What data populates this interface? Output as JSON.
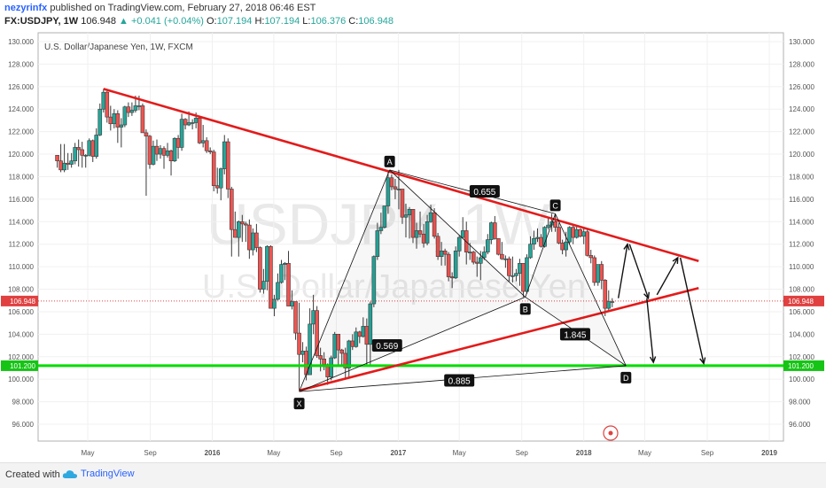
{
  "header": {
    "user": "nezyrinfx",
    "published": "published on TradingView.com, February 27, 2018 06:46 EST",
    "symbol": "FX:USDJPY, 1W",
    "last": "106.948",
    "change": "▲ +0.041 (+0.04%)",
    "o_label": "O:",
    "o": "107.194",
    "h_label": "H:",
    "h": "107.194",
    "l_label": "L:",
    "l": "106.376",
    "c_label": "C:",
    "c": "106.948"
  },
  "footer": {
    "created": "Created with",
    "brand": "TradingView"
  },
  "chart_data": {
    "type": "candlestick",
    "title": "U.S. Dollar/Japanese Yen, 1W, FXCM",
    "watermark_symbol": "USDJPY, 1W",
    "watermark_name": "U.S. Dollar/Japanese Yen",
    "x_ticks": [
      "May",
      "Sep",
      "2016",
      "May",
      "Sep",
      "2017",
      "May",
      "Sep",
      "2018",
      "May",
      "Sep",
      "2019"
    ],
    "x_tick_dates": [
      "2015-05-01",
      "2015-09-01",
      "2016-01-01",
      "2016-05-01",
      "2016-09-01",
      "2017-01-01",
      "2017-05-01",
      "2017-09-01",
      "2018-01-01",
      "2018-05-01",
      "2018-09-01",
      "2019-01-01"
    ],
    "y_ticks": [
      "130.000",
      "128.000",
      "126.000",
      "124.000",
      "122.000",
      "120.000",
      "118.000",
      "116.000",
      "114.000",
      "112.000",
      "110.000",
      "108.000",
      "106.000",
      "104.000",
      "102.000",
      "100.000",
      "98.000",
      "96.000"
    ],
    "y_range": [
      94.5,
      130.5
    ],
    "last_price": "106.948",
    "support_level": "101.200",
    "colors": {
      "up": "#26a69a",
      "down": "#ef5350",
      "trendline": "#e31b1b",
      "support": "#00dd00",
      "pattern": "#111111",
      "last_price": "#e04040"
    },
    "trendlines": [
      {
        "name": "upper-resistance",
        "from": [
          "2015-06-01",
          125.8
        ],
        "to": [
          "2018-08-15",
          110.5
        ]
      },
      {
        "name": "lower-support",
        "from": [
          "2016-06-20",
          99.0
        ],
        "to": [
          "2018-08-15",
          108.1
        ]
      }
    ],
    "horizontal_lines": [
      {
        "name": "support-101",
        "y": 101.2
      }
    ],
    "harmonic_points": [
      {
        "label": "X",
        "date": "2016-06-20",
        "y": 98.9
      },
      {
        "label": "A",
        "date": "2016-12-15",
        "y": 118.6
      },
      {
        "label": "B",
        "date": "2017-09-08",
        "y": 107.3
      },
      {
        "label": "C",
        "date": "2017-11-06",
        "y": 114.7
      },
      {
        "label": "D",
        "date": "2018-03-25",
        "y": 101.2
      }
    ],
    "ratios": [
      {
        "text": "0.655",
        "date": "2017-06-20",
        "y": 116.7
      },
      {
        "text": "0.569",
        "date": "2016-12-10",
        "y": 103.0
      },
      {
        "text": "1.845",
        "date": "2017-12-15",
        "y": 104.0
      },
      {
        "text": "0.885",
        "date": "2017-05-01",
        "y": 99.9
      }
    ],
    "arrows": [
      {
        "from": [
          "2018-03-10",
          107.2
        ],
        "to": [
          "2018-03-28",
          112.0
        ]
      },
      {
        "from": [
          "2018-04-01",
          112.0
        ],
        "to": [
          "2018-05-08",
          107.2
        ]
      },
      {
        "from": [
          "2018-05-05",
          107.2
        ],
        "to": [
          "2018-05-18",
          101.5
        ]
      },
      {
        "from": [
          "2018-05-25",
          107.5
        ],
        "to": [
          "2018-07-05",
          110.8
        ]
      },
      {
        "from": [
          "2018-07-10",
          110.8
        ],
        "to": [
          "2018-08-25",
          101.4
        ]
      }
    ],
    "candles": [
      [
        "2015-03-02",
        119.9,
        119.8,
        118.8,
        119.4
      ],
      [
        "2015-03-09",
        119.4,
        120.9,
        118.4,
        118.6
      ],
      [
        "2015-03-16",
        118.6,
        120.9,
        118.4,
        119.2
      ],
      [
        "2015-03-23",
        119.2,
        120.1,
        118.6,
        119.1
      ],
      [
        "2015-03-30",
        119.1,
        120.1,
        118.8,
        119.4
      ],
      [
        "2015-04-06",
        119.4,
        121.0,
        119.1,
        120.6
      ],
      [
        "2015-04-13",
        120.6,
        121.3,
        118.9,
        120.4
      ],
      [
        "2015-04-20",
        120.4,
        121.1,
        118.8,
        119.9
      ],
      [
        "2015-04-27",
        119.9,
        120.0,
        118.8,
        119.9
      ],
      [
        "2015-05-04",
        119.9,
        121.4,
        119.8,
        121.2
      ],
      [
        "2015-05-11",
        121.2,
        121.3,
        119.3,
        119.8
      ],
      [
        "2015-05-18",
        119.8,
        122.3,
        119.6,
        121.7
      ],
      [
        "2015-05-25",
        121.7,
        124.5,
        121.6,
        124.0
      ],
      [
        "2015-06-01",
        124.0,
        125.8,
        123.7,
        125.5
      ],
      [
        "2015-06-08",
        125.5,
        125.6,
        122.8,
        123.3
      ],
      [
        "2015-06-15",
        123.3,
        124.3,
        122.1,
        122.7
      ],
      [
        "2015-06-22",
        122.7,
        124.0,
        122.3,
        123.6
      ],
      [
        "2015-06-29",
        123.6,
        123.9,
        121.0,
        122.4
      ],
      [
        "2015-07-06",
        122.4,
        123.2,
        120.6,
        122.6
      ],
      [
        "2015-07-13",
        122.6,
        124.3,
        122.4,
        124.2
      ],
      [
        "2015-07-20",
        124.2,
        124.6,
        123.3,
        123.7
      ],
      [
        "2015-07-27",
        123.7,
        124.6,
        123.4,
        123.9
      ],
      [
        "2015-08-03",
        123.9,
        125.2,
        123.7,
        124.3
      ],
      [
        "2015-08-10",
        124.3,
        125.2,
        123.9,
        124.3
      ],
      [
        "2015-08-17",
        124.3,
        124.5,
        122.2,
        121.9
      ],
      [
        "2015-08-24",
        121.9,
        122.2,
        116.3,
        121.6
      ],
      [
        "2015-08-31",
        121.6,
        121.7,
        118.7,
        119.1
      ],
      [
        "2015-09-07",
        119.1,
        121.2,
        119.0,
        120.7
      ],
      [
        "2015-09-14",
        120.7,
        121.3,
        119.4,
        120.0
      ],
      [
        "2015-09-21",
        120.0,
        120.8,
        119.6,
        120.5
      ],
      [
        "2015-09-28",
        120.5,
        120.7,
        118.7,
        119.9
      ],
      [
        "2015-10-05",
        119.9,
        121.0,
        119.7,
        120.3
      ],
      [
        "2015-10-12",
        120.3,
        120.4,
        118.1,
        119.4
      ],
      [
        "2015-10-19",
        119.4,
        121.5,
        119.3,
        121.4
      ],
      [
        "2015-10-26",
        121.4,
        121.7,
        119.6,
        120.6
      ],
      [
        "2015-11-02",
        120.6,
        123.6,
        120.3,
        123.1
      ],
      [
        "2015-11-09",
        123.1,
        123.2,
        122.2,
        122.6
      ],
      [
        "2015-11-16",
        122.6,
        123.8,
        122.5,
        122.8
      ],
      [
        "2015-11-23",
        122.8,
        123.1,
        122.2,
        122.8
      ],
      [
        "2015-11-30",
        122.8,
        123.7,
        122.3,
        123.2
      ],
      [
        "2015-12-07",
        123.2,
        123.3,
        120.9,
        121.0
      ],
      [
        "2015-12-14",
        121.0,
        122.6,
        120.6,
        121.2
      ],
      [
        "2015-12-21",
        121.2,
        121.5,
        120.1,
        120.3
      ],
      [
        "2015-12-28",
        120.3,
        120.6,
        120.0,
        120.2
      ],
      [
        "2016-01-04",
        120.2,
        120.4,
        116.7,
        117.2
      ],
      [
        "2016-01-11",
        117.2,
        118.8,
        116.5,
        117.0
      ],
      [
        "2016-01-18",
        117.0,
        118.8,
        115.9,
        118.7
      ],
      [
        "2016-01-25",
        118.7,
        121.7,
        118.2,
        121.1
      ],
      [
        "2016-02-01",
        121.1,
        121.4,
        116.1,
        116.9
      ],
      [
        "2016-02-08",
        116.9,
        117.1,
        110.9,
        113.3
      ],
      [
        "2016-02-15",
        113.3,
        114.9,
        112.6,
        112.6
      ],
      [
        "2016-02-22",
        112.6,
        114.1,
        110.9,
        114.0
      ],
      [
        "2016-02-29",
        114.0,
        114.6,
        112.2,
        113.8
      ],
      [
        "2016-03-07",
        113.8,
        114.0,
        112.2,
        113.7
      ],
      [
        "2016-03-14",
        113.7,
        114.2,
        110.7,
        111.5
      ],
      [
        "2016-03-21",
        111.5,
        113.4,
        111.0,
        113.0
      ],
      [
        "2016-03-28",
        113.0,
        113.8,
        111.3,
        111.7
      ],
      [
        "2016-04-04",
        111.7,
        111.8,
        107.7,
        108.0
      ],
      [
        "2016-04-11",
        108.0,
        109.8,
        107.6,
        108.7
      ],
      [
        "2016-04-18",
        108.7,
        111.9,
        107.9,
        111.8
      ],
      [
        "2016-04-25",
        111.8,
        111.9,
        106.3,
        106.3
      ],
      [
        "2016-05-02",
        106.3,
        107.5,
        105.6,
        107.1
      ],
      [
        "2016-05-09",
        107.1,
        109.4,
        107.0,
        108.6
      ],
      [
        "2016-05-16",
        108.6,
        110.6,
        108.5,
        110.2
      ],
      [
        "2016-05-23",
        110.2,
        110.4,
        108.8,
        110.3
      ],
      [
        "2016-05-30",
        110.3,
        111.4,
        106.5,
        106.5
      ],
      [
        "2016-06-06",
        106.5,
        107.9,
        106.2,
        106.9
      ],
      [
        "2016-06-13",
        106.9,
        106.9,
        103.5,
        104.1
      ],
      [
        "2016-06-20",
        104.1,
        106.8,
        99.0,
        102.2
      ],
      [
        "2016-06-27",
        102.2,
        103.3,
        101.5,
        102.5
      ],
      [
        "2016-07-04",
        102.5,
        102.9,
        99.9,
        100.4
      ],
      [
        "2016-07-11",
        100.4,
        106.3,
        100.5,
        104.9
      ],
      [
        "2016-07-18",
        104.9,
        107.5,
        104.0,
        106.1
      ],
      [
        "2016-07-25",
        106.1,
        106.5,
        101.9,
        102.1
      ],
      [
        "2016-08-01",
        102.1,
        102.8,
        100.7,
        101.8
      ],
      [
        "2016-08-08",
        101.8,
        102.4,
        100.8,
        101.3
      ],
      [
        "2016-08-15",
        101.3,
        101.4,
        99.5,
        100.2
      ],
      [
        "2016-08-22",
        100.2,
        102.1,
        99.9,
        101.9
      ],
      [
        "2016-08-29",
        101.9,
        104.2,
        101.8,
        104.0
      ],
      [
        "2016-09-05",
        104.0,
        104.0,
        101.2,
        102.6
      ],
      [
        "2016-09-12",
        102.6,
        102.7,
        101.3,
        102.3
      ],
      [
        "2016-09-19",
        102.3,
        102.8,
        100.1,
        101.0
      ],
      [
        "2016-09-26",
        101.0,
        103.5,
        100.1,
        103.4
      ],
      [
        "2016-10-03",
        103.4,
        104.0,
        102.6,
        102.9
      ],
      [
        "2016-10-10",
        102.9,
        104.6,
        102.8,
        104.2
      ],
      [
        "2016-10-17",
        104.2,
        104.3,
        103.2,
        103.8
      ],
      [
        "2016-10-24",
        103.8,
        105.5,
        103.7,
        104.7
      ],
      [
        "2016-10-31",
        104.7,
        105.4,
        101.2,
        103.1
      ],
      [
        "2016-11-07",
        103.1,
        106.9,
        101.2,
        106.7
      ],
      [
        "2016-11-14",
        106.7,
        111.0,
        106.4,
        110.9
      ],
      [
        "2016-11-21",
        110.9,
        113.9,
        110.6,
        113.2
      ],
      [
        "2016-11-28",
        113.2,
        114.8,
        112.9,
        113.5
      ],
      [
        "2016-12-05",
        113.5,
        115.4,
        113.4,
        115.4
      ],
      [
        "2016-12-12",
        115.4,
        118.6,
        114.7,
        117.9
      ],
      [
        "2016-12-19",
        117.9,
        118.2,
        116.8,
        117.1
      ],
      [
        "2016-12-26",
        117.1,
        117.8,
        116.0,
        116.9
      ],
      [
        "2017-01-02",
        116.9,
        118.6,
        115.1,
        116.9
      ],
      [
        "2017-01-09",
        116.9,
        116.9,
        113.8,
        114.4
      ],
      [
        "2017-01-16",
        114.4,
        115.6,
        112.6,
        114.6
      ],
      [
        "2017-01-23",
        114.6,
        115.3,
        112.5,
        115.1
      ],
      [
        "2017-01-30",
        115.1,
        115.0,
        112.1,
        112.6
      ],
      [
        "2017-02-06",
        112.6,
        113.9,
        111.6,
        113.2
      ],
      [
        "2017-02-13",
        113.2,
        114.9,
        112.6,
        112.9
      ],
      [
        "2017-02-20",
        112.9,
        113.8,
        111.7,
        112.1
      ],
      [
        "2017-02-27",
        112.1,
        114.6,
        111.9,
        114.0
      ],
      [
        "2017-03-06",
        114.0,
        115.5,
        113.9,
        114.8
      ],
      [
        "2017-03-13",
        114.8,
        115.2,
        112.5,
        112.7
      ],
      [
        "2017-03-20",
        112.7,
        113.0,
        110.6,
        110.9
      ],
      [
        "2017-03-27",
        110.9,
        112.2,
        110.1,
        111.4
      ],
      [
        "2017-04-03",
        111.4,
        111.6,
        110.1,
        111.1
      ],
      [
        "2017-04-10",
        111.1,
        111.3,
        108.7,
        109.1
      ],
      [
        "2017-04-17",
        109.1,
        109.5,
        108.1,
        109.0
      ],
      [
        "2017-04-24",
        109.0,
        111.8,
        108.9,
        111.4
      ],
      [
        "2017-05-01",
        111.4,
        112.8,
        110.9,
        112.6
      ],
      [
        "2017-05-08",
        112.6,
        114.4,
        112.5,
        113.2
      ],
      [
        "2017-05-15",
        113.2,
        114.0,
        110.2,
        111.3
      ],
      [
        "2017-05-22",
        111.3,
        112.1,
        110.6,
        111.3
      ],
      [
        "2017-05-29",
        111.3,
        111.4,
        110.2,
        110.4
      ],
      [
        "2017-06-05",
        110.4,
        110.9,
        109.1,
        110.3
      ],
      [
        "2017-06-12",
        110.3,
        111.4,
        108.8,
        110.8
      ],
      [
        "2017-06-19",
        110.8,
        111.8,
        110.6,
        111.3
      ],
      [
        "2017-06-26",
        111.3,
        112.9,
        111.1,
        112.4
      ],
      [
        "2017-07-03",
        112.4,
        114.0,
        112.0,
        113.9
      ],
      [
        "2017-07-10",
        113.9,
        114.5,
        112.4,
        112.5
      ],
      [
        "2017-07-17",
        112.5,
        112.5,
        111.0,
        111.1
      ],
      [
        "2017-07-24",
        111.1,
        112.2,
        110.6,
        110.7
      ],
      [
        "2017-07-31",
        110.7,
        111.0,
        109.9,
        110.7
      ],
      [
        "2017-08-07",
        110.7,
        110.9,
        108.7,
        109.2
      ],
      [
        "2017-08-14",
        109.2,
        110.9,
        108.6,
        109.2
      ],
      [
        "2017-08-21",
        109.2,
        109.8,
        108.7,
        109.4
      ],
      [
        "2017-08-28",
        109.4,
        110.7,
        108.3,
        110.3
      ],
      [
        "2017-09-04",
        110.3,
        110.3,
        107.3,
        107.8
      ],
      [
        "2017-09-11",
        107.8,
        111.1,
        107.6,
        110.8
      ],
      [
        "2017-09-18",
        110.8,
        112.7,
        110.7,
        112.0
      ],
      [
        "2017-09-25",
        112.0,
        113.2,
        111.5,
        112.5
      ],
      [
        "2017-10-02",
        112.5,
        113.4,
        112.2,
        112.6
      ],
      [
        "2017-10-09",
        112.6,
        112.9,
        111.7,
        111.8
      ],
      [
        "2017-10-16",
        111.8,
        113.6,
        111.7,
        113.5
      ],
      [
        "2017-10-23",
        113.5,
        114.3,
        113.3,
        113.7
      ],
      [
        "2017-10-30",
        113.7,
        114.7,
        113.1,
        114.0
      ],
      [
        "2017-11-06",
        114.0,
        114.7,
        113.1,
        113.5
      ],
      [
        "2017-11-13",
        113.5,
        113.9,
        112.0,
        112.1
      ],
      [
        "2017-11-20",
        112.1,
        112.4,
        111.1,
        111.5
      ],
      [
        "2017-11-27",
        111.5,
        113.1,
        110.9,
        112.2
      ],
      [
        "2017-12-04",
        112.2,
        113.6,
        112.0,
        113.5
      ],
      [
        "2017-12-11",
        113.5,
        113.7,
        112.0,
        112.6
      ],
      [
        "2017-12-18",
        112.6,
        113.6,
        112.5,
        113.3
      ],
      [
        "2017-12-25",
        113.3,
        113.4,
        112.6,
        112.7
      ],
      [
        "2018-01-01",
        112.7,
        113.4,
        112.0,
        113.1
      ],
      [
        "2018-01-08",
        113.1,
        113.4,
        110.9,
        111.0
      ],
      [
        "2018-01-15",
        111.0,
        111.5,
        110.3,
        110.8
      ],
      [
        "2018-01-22",
        110.8,
        111.0,
        108.3,
        108.6
      ],
      [
        "2018-01-29",
        108.6,
        110.2,
        108.3,
        110.2
      ],
      [
        "2018-02-05",
        110.2,
        110.5,
        108.0,
        108.8
      ],
      [
        "2018-02-12",
        108.8,
        108.9,
        105.6,
        106.3
      ],
      [
        "2018-02-19",
        106.3,
        107.9,
        106.1,
        106.9
      ],
      [
        "2018-02-26",
        106.9,
        107.2,
        106.4,
        106.9
      ]
    ]
  }
}
